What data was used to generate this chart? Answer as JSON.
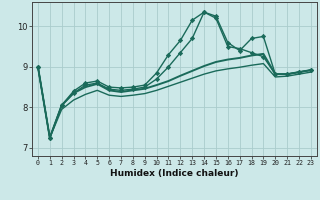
{
  "title": "",
  "xlabel": "Humidex (Indice chaleur)",
  "bg_color": "#cce8e8",
  "grid_color": "#aacccc",
  "line_color": "#1a6a5a",
  "xlim": [
    -0.5,
    23.5
  ],
  "ylim": [
    6.8,
    10.6
  ],
  "yticks": [
    7,
    8,
    9,
    10
  ],
  "xticks": [
    0,
    1,
    2,
    3,
    4,
    5,
    6,
    7,
    8,
    9,
    10,
    11,
    12,
    13,
    14,
    15,
    16,
    17,
    18,
    19,
    20,
    21,
    22,
    23
  ],
  "series": [
    {
      "x": [
        0,
        1,
        2,
        3,
        4,
        5,
        6,
        7,
        8,
        9,
        10,
        11,
        12,
        13,
        14,
        15,
        16,
        17,
        18,
        19,
        20,
        21,
        22,
        23
      ],
      "y": [
        9.0,
        7.25,
        8.05,
        8.4,
        8.6,
        8.65,
        8.5,
        8.48,
        8.5,
        8.55,
        8.85,
        9.3,
        9.65,
        10.15,
        10.35,
        10.2,
        9.5,
        9.45,
        9.35,
        9.25,
        8.82,
        8.82,
        8.87,
        8.92
      ],
      "marker": "D",
      "markersize": 2.2,
      "linewidth": 1.0
    },
    {
      "x": [
        0,
        1,
        2,
        3,
        4,
        5,
        6,
        7,
        8,
        9,
        10,
        11,
        12,
        13,
        14,
        15,
        16,
        17,
        18,
        19,
        20,
        21,
        22,
        23
      ],
      "y": [
        9.0,
        7.25,
        8.05,
        8.35,
        8.55,
        8.6,
        8.45,
        8.42,
        8.45,
        8.5,
        8.7,
        9.0,
        9.35,
        9.7,
        10.35,
        10.25,
        9.6,
        9.4,
        9.7,
        9.75,
        8.82,
        8.82,
        8.87,
        8.92
      ],
      "marker": "D",
      "markersize": 2.2,
      "linewidth": 1.0
    },
    {
      "x": [
        0,
        1,
        2,
        3,
        4,
        5,
        6,
        7,
        8,
        9,
        10,
        11,
        12,
        13,
        14,
        15,
        16,
        17,
        18,
        19,
        20,
        21,
        22,
        23
      ],
      "y": [
        9.0,
        7.25,
        8.05,
        8.35,
        8.5,
        8.58,
        8.42,
        8.38,
        8.42,
        8.46,
        8.55,
        8.65,
        8.78,
        8.9,
        9.02,
        9.12,
        9.18,
        9.22,
        9.28,
        9.32,
        8.82,
        8.82,
        8.87,
        8.92
      ],
      "marker": null,
      "markersize": 0,
      "linewidth": 1.4
    },
    {
      "x": [
        0,
        1,
        2,
        3,
        4,
        5,
        6,
        7,
        8,
        9,
        10,
        11,
        12,
        13,
        14,
        15,
        16,
        17,
        18,
        19,
        20,
        21,
        22,
        23
      ],
      "y": [
        9.0,
        7.25,
        7.95,
        8.18,
        8.32,
        8.42,
        8.3,
        8.27,
        8.3,
        8.34,
        8.42,
        8.52,
        8.62,
        8.72,
        8.82,
        8.9,
        8.95,
        8.99,
        9.04,
        9.08,
        8.75,
        8.77,
        8.82,
        8.87
      ],
      "marker": null,
      "markersize": 0,
      "linewidth": 1.0
    }
  ]
}
